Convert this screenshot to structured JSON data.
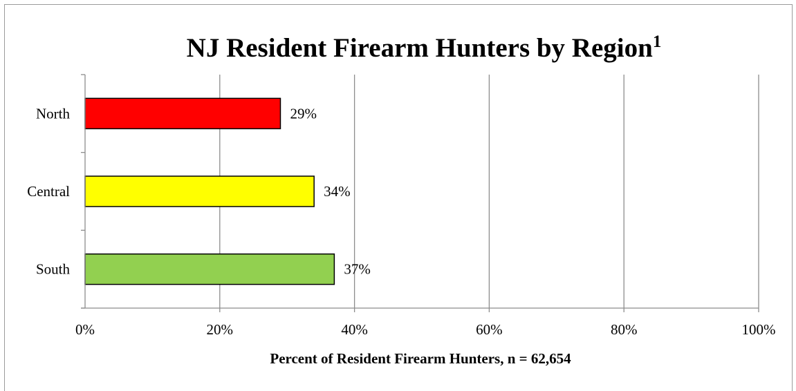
{
  "chart_data": {
    "type": "bar",
    "orientation": "horizontal",
    "title": "NJ Resident Firearm Hunters by Region",
    "title_superscript": "1",
    "categories": [
      "North",
      "Central",
      "South"
    ],
    "values": [
      29,
      34,
      37
    ],
    "data_labels": [
      "29%",
      "34%",
      "37%"
    ],
    "bar_colors": [
      "#ff0000",
      "#ffff00",
      "#92d050"
    ],
    "xlabel": "Percent of Resident Firearm Hunters, n = 62,654",
    "ylabel": "",
    "xlim": [
      0,
      100
    ],
    "x_ticks": [
      0,
      20,
      40,
      60,
      80,
      100
    ],
    "x_tick_labels": [
      "0%",
      "20%",
      "40%",
      "60%",
      "80%",
      "100%"
    ],
    "grid": "vertical",
    "legend": "none"
  }
}
